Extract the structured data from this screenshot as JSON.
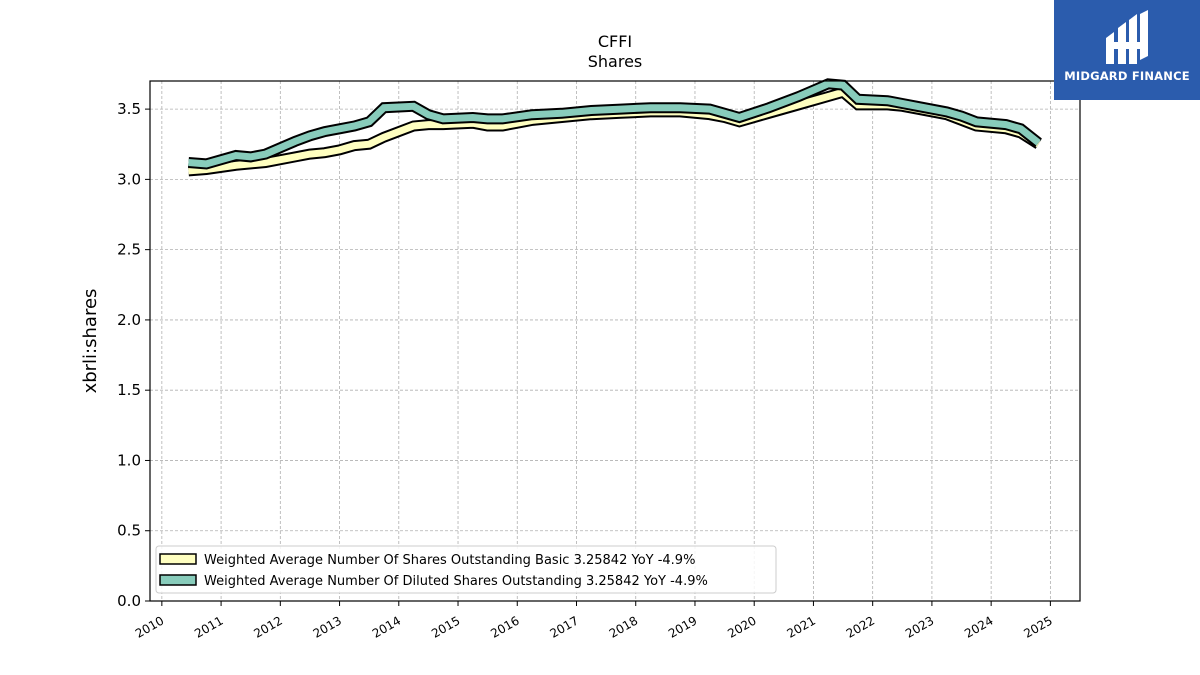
{
  "chart_data": {
    "type": "line",
    "title": "CFFI",
    "subtitle": "Shares",
    "xlabel": "",
    "ylabel": "xbrli:shares",
    "xlim": [
      2009.8,
      2025.5
    ],
    "ylim": [
      0.0,
      3.7
    ],
    "x_ticks": [
      "2010",
      "2011",
      "2012",
      "2013",
      "2014",
      "2015",
      "2016",
      "2017",
      "2018",
      "2019",
      "2020",
      "2021",
      "2022",
      "2023",
      "2024",
      "2025"
    ],
    "y_ticks": [
      "0.0",
      "0.5",
      "1.0",
      "1.5",
      "2.0",
      "2.5",
      "3.0",
      "3.5"
    ],
    "grid": true,
    "legend_position": "lower-left",
    "series": [
      {
        "name": "Weighted Average Number Of Shares Outstanding Basic  3.25842 YoY -4.9%",
        "color": "#ffffc0",
        "x": [
          2010.45,
          2010.75,
          2011.25,
          2011.5,
          2011.75,
          2012.25,
          2012.5,
          2012.75,
          2013.0,
          2013.25,
          2013.5,
          2013.75,
          2014.25,
          2014.5,
          2014.75,
          2015.25,
          2015.5,
          2015.75,
          2016.25,
          2016.75,
          2017.25,
          2017.75,
          2018.25,
          2018.75,
          2019.25,
          2019.5,
          2019.75,
          2020.25,
          2020.75,
          2021.25,
          2021.5,
          2021.75,
          2022.25,
          2022.5,
          2022.75,
          2023.25,
          2023.5,
          2023.75,
          2024.25,
          2024.5,
          2024.8
        ],
        "y": [
          3.06,
          3.07,
          3.1,
          3.11,
          3.12,
          3.16,
          3.18,
          3.19,
          3.21,
          3.24,
          3.25,
          3.3,
          3.38,
          3.39,
          3.39,
          3.4,
          3.38,
          3.38,
          3.42,
          3.44,
          3.46,
          3.47,
          3.48,
          3.48,
          3.46,
          3.44,
          3.41,
          3.47,
          3.53,
          3.59,
          3.62,
          3.53,
          3.53,
          3.52,
          3.5,
          3.46,
          3.42,
          3.38,
          3.36,
          3.33,
          3.25
        ]
      },
      {
        "name": "Weighted Average Number Of Diluted Shares Outstanding  3.25842 YoY -4.9%",
        "color": "#88ccbb",
        "x": [
          2010.45,
          2010.75,
          2011.25,
          2011.5,
          2011.75,
          2012.25,
          2012.5,
          2012.75,
          2013.0,
          2013.25,
          2013.5,
          2013.75,
          2014.25,
          2014.5,
          2014.75,
          2015.25,
          2015.5,
          2015.75,
          2016.25,
          2016.75,
          2017.25,
          2017.75,
          2018.25,
          2018.75,
          2019.25,
          2019.5,
          2019.75,
          2020.25,
          2020.75,
          2021.25,
          2021.5,
          2021.75,
          2022.25,
          2022.5,
          2022.75,
          2023.25,
          2023.5,
          2023.75,
          2024.25,
          2024.5,
          2024.8
        ],
        "y": [
          3.12,
          3.11,
          3.17,
          3.16,
          3.18,
          3.27,
          3.31,
          3.34,
          3.36,
          3.38,
          3.41,
          3.51,
          3.52,
          3.46,
          3.43,
          3.44,
          3.43,
          3.43,
          3.46,
          3.47,
          3.49,
          3.5,
          3.51,
          3.51,
          3.5,
          3.47,
          3.44,
          3.51,
          3.59,
          3.68,
          3.67,
          3.57,
          3.56,
          3.54,
          3.52,
          3.48,
          3.45,
          3.41,
          3.39,
          3.36,
          3.26
        ]
      }
    ]
  },
  "logo": {
    "text": "MIDGARD FINANCE"
  }
}
